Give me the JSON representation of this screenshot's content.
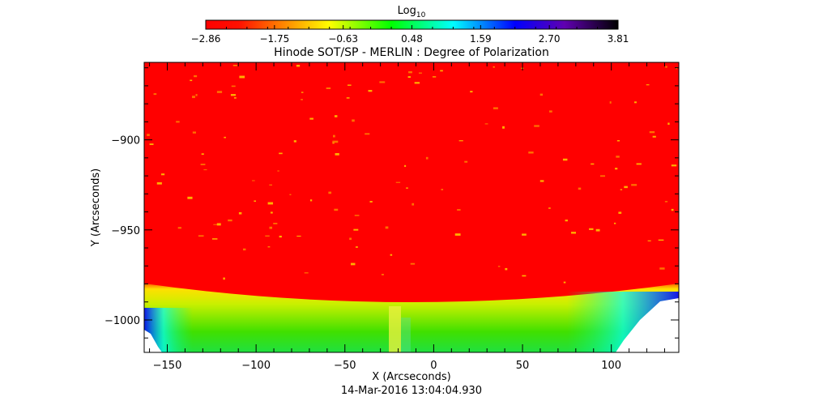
{
  "chart_data": {
    "type": "heatmap",
    "title": "Hinode SOT/SP - MERLIN : Degree of Polarization",
    "xlabel": "X (Arcseconds)",
    "ylabel": "Y (Arcseconds)",
    "footer": "14-Mar-2016 13:04:04.930",
    "xlim": [
      -163,
      138
    ],
    "ylim": [
      -1018,
      -857
    ],
    "x_ticks": [
      -150,
      -100,
      -50,
      0,
      50,
      100
    ],
    "y_ticks": [
      -900,
      -950,
      -1000
    ],
    "colorbar": {
      "label_base": "Log",
      "label_sub": "10",
      "range": [
        -2.86,
        3.81
      ],
      "ticks": [
        "-2.86",
        "-1.75",
        "-0.63",
        "0.48",
        "1.59",
        "2.70",
        "3.81"
      ],
      "colormap": [
        "#ff0000",
        "#ff8000",
        "#ffff00",
        "#00ff00",
        "#00ffff",
        "#0000ff",
        "#8000c0",
        "#000000"
      ]
    }
  }
}
